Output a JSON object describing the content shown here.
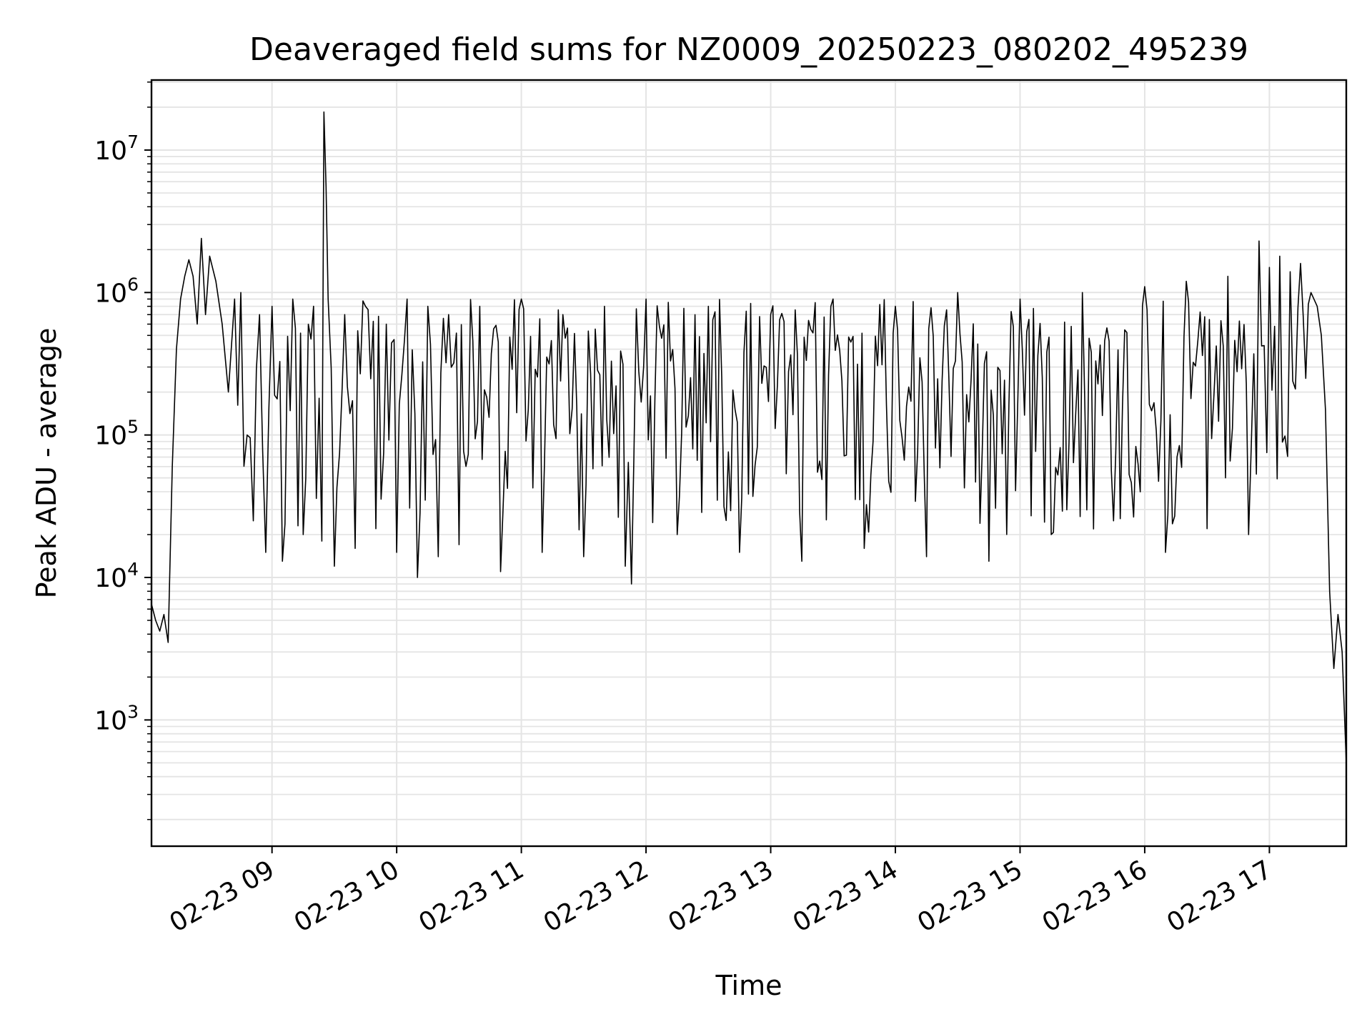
{
  "chart_data": {
    "type": "line",
    "title": "Deaveraged field sums for NZ0009_20250223_080202_495239",
    "xlabel": "Time",
    "ylabel": "Peak ADU - average",
    "yscale": "log",
    "xlim": [
      "2025-02-23 08:02",
      "2025-02-23 17:37"
    ],
    "ylim": [
      130,
      31000000
    ],
    "grid": true,
    "x_tick_labels": [
      "02-23 09",
      "02-23 10",
      "02-23 11",
      "02-23 12",
      "02-23 13",
      "02-23 14",
      "02-23 15",
      "02-23 16",
      "02-23 17"
    ],
    "y_ticks": [
      {
        "base": "10",
        "exp": "3",
        "value": 1000
      },
      {
        "base": "10",
        "exp": "4",
        "value": 10000
      },
      {
        "base": "10",
        "exp": "5",
        "value": 100000
      },
      {
        "base": "10",
        "exp": "6",
        "value": 1000000
      },
      {
        "base": "10",
        "exp": "7",
        "value": 10000000
      }
    ],
    "series": [
      {
        "color": "#000000",
        "x": [
          "2025-02-23 08:02",
          "2025-02-23 08:04",
          "2025-02-23 08:06",
          "2025-02-23 08:08",
          "2025-02-23 08:10",
          "2025-02-23 08:12",
          "2025-02-23 08:14",
          "2025-02-23 08:16",
          "2025-02-23 08:18",
          "2025-02-23 08:20",
          "2025-02-23 08:22",
          "2025-02-23 08:24",
          "2025-02-23 08:26",
          "2025-02-23 08:28",
          "2025-02-23 08:30",
          "2025-02-23 08:33",
          "2025-02-23 08:36",
          "2025-02-23 08:39",
          "2025-02-23 08:42",
          "2025-02-23 08:45",
          "2025-02-23 08:48",
          "2025-02-23 08:51",
          "2025-02-23 08:54",
          "2025-02-23 08:57",
          "2025-02-23 09:00",
          "2025-02-23 09:05",
          "2025-02-23 09:10",
          "2025-02-23 09:15",
          "2025-02-23 09:20",
          "2025-02-23 09:24",
          "2025-02-23 09:25",
          "2025-02-23 09:26",
          "2025-02-23 09:27",
          "2025-02-23 09:30",
          "2025-02-23 09:35",
          "2025-02-23 09:40",
          "2025-02-23 09:45",
          "2025-02-23 09:50",
          "2025-02-23 09:55",
          "2025-02-23 10:00",
          "2025-02-23 10:05",
          "2025-02-23 10:10",
          "2025-02-23 10:15",
          "2025-02-23 10:20",
          "2025-02-23 10:25",
          "2025-02-23 10:30",
          "2025-02-23 10:40",
          "2025-02-23 10:50",
          "2025-02-23 11:00",
          "2025-02-23 11:10",
          "2025-02-23 11:20",
          "2025-02-23 11:30",
          "2025-02-23 11:40",
          "2025-02-23 11:50",
          "2025-02-23 11:53",
          "2025-02-23 12:00",
          "2025-02-23 12:15",
          "2025-02-23 12:30",
          "2025-02-23 12:45",
          "2025-02-23 13:00",
          "2025-02-23 13:15",
          "2025-02-23 13:30",
          "2025-02-23 13:45",
          "2025-02-23 14:00",
          "2025-02-23 14:15",
          "2025-02-23 14:30",
          "2025-02-23 14:45",
          "2025-02-23 15:00",
          "2025-02-23 15:15",
          "2025-02-23 15:30",
          "2025-02-23 15:45",
          "2025-02-23 16:00",
          "2025-02-23 16:10",
          "2025-02-23 16:20",
          "2025-02-23 16:30",
          "2025-02-23 16:40",
          "2025-02-23 16:50",
          "2025-02-23 16:55",
          "2025-02-23 17:00",
          "2025-02-23 17:05",
          "2025-02-23 17:10",
          "2025-02-23 17:15",
          "2025-02-23 17:20",
          "2025-02-23 17:23",
          "2025-02-23 17:25",
          "2025-02-23 17:27",
          "2025-02-23 17:29",
          "2025-02-23 17:31",
          "2025-02-23 17:33",
          "2025-02-23 17:35",
          "2025-02-23 17:37"
        ],
        "y": [
          6500,
          5000,
          4200,
          5500,
          3500,
          60000,
          400000,
          900000,
          1300000,
          1700000,
          1300000,
          600000,
          2400000,
          700000,
          1800000,
          1200000,
          600000,
          200000,
          900000,
          1000000,
          100000,
          25000,
          700000,
          15000,
          800000,
          13000,
          900000,
          20000,
          800000,
          18000,
          18500000,
          5500000,
          900000,
          12000,
          700000,
          16000,
          800000,
          22000,
          600000,
          15000,
          900000,
          10000,
          800000,
          14000,
          700000,
          17000,
          800000,
          11000,
          900000,
          15000,
          700000,
          14000,
          800000,
          12000,
          9000,
          900000,
          20000,
          800000,
          15000,
          700000,
          13000,
          900000,
          16000,
          800000,
          14000,
          1000000,
          13000,
          900000,
          20000,
          1000000,
          25000,
          1100000,
          15000,
          1200000,
          22000,
          1300000,
          20000,
          2300000,
          1500000,
          1800000,
          1400000,
          1600000,
          1000000,
          800000,
          500000,
          150000,
          8000,
          2300,
          5500,
          3000,
          500
        ]
      }
    ]
  }
}
